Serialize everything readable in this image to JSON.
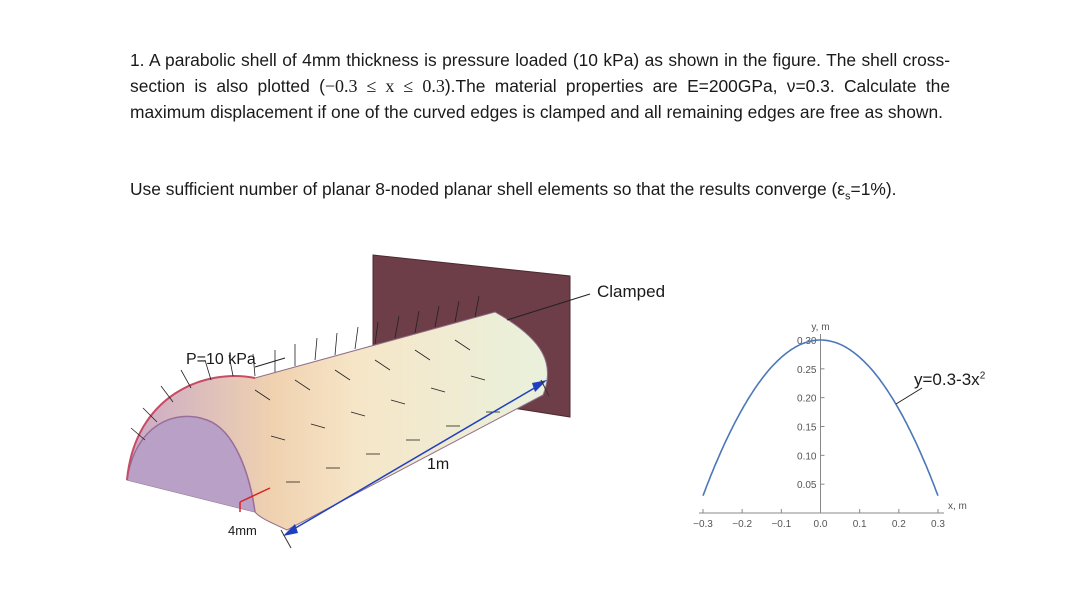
{
  "problem": {
    "p1_before": "1. A parabolic shell of 4mm thickness is pressure loaded (10 kPa) as shown in the figure. The shell cross-section is also plotted (",
    "p1_math": "−0.3 ≤ x ≤ 0.3",
    "p1_after": ").The material properties are E=200GPa, ν=0.3. Calculate the maximum displacement if one of the curved edges is clamped and all remaining edges are free as shown.",
    "p2_before": "Use sufficient number of planar 8-noded planar shell elements so that the results converge (ε",
    "p2_sub": "s",
    "p2_after": "=1%)."
  },
  "shell_figure": {
    "clamped_label": "Clamped",
    "pressure_label": "P=10 kPa",
    "length_label": "1m",
    "thickness_label": "4mm"
  },
  "plot": {
    "ylabel": "y, m",
    "xlabel": "x, m",
    "equation_prefix": "y=0.3-3x",
    "equation_exp": "2",
    "xticks": [
      "−0.3",
      "−0.2",
      "−0.1",
      "0.0",
      "0.1",
      "0.2",
      "0.3"
    ],
    "yticks": [
      "0.05",
      "0.10",
      "0.15",
      "0.20",
      "0.25",
      "0.30"
    ],
    "curve_color": "#4a78b8"
  },
  "chart_data": {
    "type": "line",
    "title": "",
    "xlabel": "x, m",
    "ylabel": "y, m",
    "xlim": [
      -0.3,
      0.3
    ],
    "ylim": [
      0,
      0.3
    ],
    "x": [
      -0.3,
      -0.25,
      -0.2,
      -0.15,
      -0.1,
      -0.05,
      0.0,
      0.05,
      0.1,
      0.15,
      0.2,
      0.25,
      0.3
    ],
    "series": [
      {
        "values": [
          0.03,
          0.1125,
          0.18,
          0.2325,
          0.27,
          0.2925,
          0.3,
          0.2925,
          0.27,
          0.2325,
          0.18,
          0.1125,
          0.03
        ]
      }
    ],
    "grid": false
  }
}
